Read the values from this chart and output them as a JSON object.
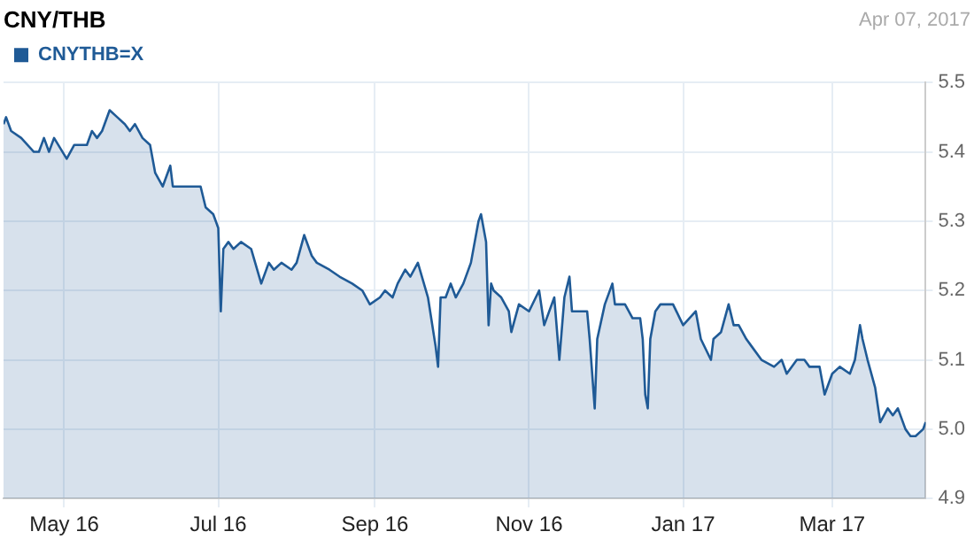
{
  "chart_data": {
    "type": "area",
    "title": "CNY/THB",
    "annotations": [
      "Apr 07, 2017"
    ],
    "legend": "top left",
    "grid": true,
    "xlim": [
      "2016-04-07",
      "2017-04-07"
    ],
    "xticks": [
      {
        "value": "2016-05-01",
        "label": "May 16"
      },
      {
        "value": "2016-07-01",
        "label": "Jul 16"
      },
      {
        "value": "2016-09-01",
        "label": "Sep 16"
      },
      {
        "value": "2016-11-01",
        "label": "Nov 16"
      },
      {
        "value": "2017-01-01",
        "label": "Jan 17"
      },
      {
        "value": "2017-03-01",
        "label": "Mar 17"
      }
    ],
    "ylim": [
      4.9,
      5.5
    ],
    "yticks": [
      {
        "value": 4.9,
        "label": "4.9"
      },
      {
        "value": 5.0,
        "label": "5.0"
      },
      {
        "value": 5.1,
        "label": "5.1"
      },
      {
        "value": 5.2,
        "label": "5.2"
      },
      {
        "value": 5.3,
        "label": "5.3"
      },
      {
        "value": 5.4,
        "label": "5.4"
      },
      {
        "value": 5.5,
        "label": "5.5"
      }
    ],
    "x": [
      "2016-04-07",
      "2016-04-08",
      "2016-04-10",
      "2016-04-14",
      "2016-04-19",
      "2016-04-21",
      "2016-04-23",
      "2016-04-25",
      "2016-04-27",
      "2016-05-02",
      "2016-05-05",
      "2016-05-10",
      "2016-05-12",
      "2016-05-14",
      "2016-05-16",
      "2016-05-19",
      "2016-05-22",
      "2016-05-25",
      "2016-05-27",
      "2016-05-29",
      "2016-06-01",
      "2016-06-04",
      "2016-06-06",
      "2016-06-09",
      "2016-06-12",
      "2016-06-13",
      "2016-06-16",
      "2016-06-21",
      "2016-06-24",
      "2016-06-26",
      "2016-06-29",
      "2016-07-01",
      "2016-07-02",
      "2016-07-03",
      "2016-07-05",
      "2016-07-07",
      "2016-07-10",
      "2016-07-14",
      "2016-07-18",
      "2016-07-21",
      "2016-07-23",
      "2016-07-26",
      "2016-07-30",
      "2016-08-01",
      "2016-08-04",
      "2016-08-07",
      "2016-08-09",
      "2016-08-14",
      "2016-08-18",
      "2016-08-23",
      "2016-08-27",
      "2016-08-30",
      "2016-09-03",
      "2016-09-05",
      "2016-09-08",
      "2016-09-10",
      "2016-09-13",
      "2016-09-15",
      "2016-09-18",
      "2016-09-22",
      "2016-09-25",
      "2016-09-26",
      "2016-09-27",
      "2016-09-29",
      "2016-10-01",
      "2016-10-03",
      "2016-10-06",
      "2016-10-09",
      "2016-10-12",
      "2016-10-13",
      "2016-10-15",
      "2016-10-16",
      "2016-10-17",
      "2016-10-18",
      "2016-10-21",
      "2016-10-24",
      "2016-10-25",
      "2016-10-28",
      "2016-11-01",
      "2016-11-05",
      "2016-11-07",
      "2016-11-11",
      "2016-11-13",
      "2016-11-15",
      "2016-11-17",
      "2016-11-18",
      "2016-11-24",
      "2016-11-25",
      "2016-11-27",
      "2016-11-28",
      "2016-12-01",
      "2016-12-04",
      "2016-12-05",
      "2016-12-09",
      "2016-12-12",
      "2016-12-15",
      "2016-12-16",
      "2016-12-17",
      "2016-12-18",
      "2016-12-19",
      "2016-12-21",
      "2016-12-23",
      "2016-12-28",
      "2017-01-01",
      "2017-01-06",
      "2017-01-08",
      "2017-01-12",
      "2017-01-13",
      "2017-01-16",
      "2017-01-19",
      "2017-01-21",
      "2017-01-23",
      "2017-01-26",
      "2017-01-28",
      "2017-02-01",
      "2017-02-06",
      "2017-02-09",
      "2017-02-11",
      "2017-02-15",
      "2017-02-18",
      "2017-02-20",
      "2017-02-24",
      "2017-02-26",
      "2017-03-01",
      "2017-03-04",
      "2017-03-08",
      "2017-03-10",
      "2017-03-12",
      "2017-03-13",
      "2017-03-15",
      "2017-03-18",
      "2017-03-20",
      "2017-03-23",
      "2017-03-25",
      "2017-03-27",
      "2017-03-30",
      "2017-04-01",
      "2017-04-03",
      "2017-04-06",
      "2017-04-07"
    ],
    "series": [
      {
        "name": "CNYTHB=X",
        "color": "#1f5a96",
        "values": [
          5.44,
          5.45,
          5.43,
          5.42,
          5.4,
          5.4,
          5.42,
          5.4,
          5.42,
          5.39,
          5.41,
          5.41,
          5.43,
          5.42,
          5.43,
          5.46,
          5.45,
          5.44,
          5.43,
          5.44,
          5.42,
          5.41,
          5.37,
          5.35,
          5.38,
          5.35,
          5.35,
          5.35,
          5.35,
          5.32,
          5.31,
          5.29,
          5.17,
          5.26,
          5.27,
          5.26,
          5.27,
          5.26,
          5.21,
          5.24,
          5.23,
          5.24,
          5.23,
          5.24,
          5.28,
          5.25,
          5.24,
          5.23,
          5.22,
          5.21,
          5.2,
          5.18,
          5.19,
          5.2,
          5.19,
          5.21,
          5.23,
          5.22,
          5.24,
          5.19,
          5.12,
          5.09,
          5.19,
          5.19,
          5.21,
          5.19,
          5.21,
          5.24,
          5.3,
          5.31,
          5.27,
          5.15,
          5.21,
          5.2,
          5.19,
          5.17,
          5.14,
          5.18,
          5.17,
          5.2,
          5.15,
          5.19,
          5.1,
          5.19,
          5.22,
          5.17,
          5.17,
          5.13,
          5.03,
          5.13,
          5.18,
          5.21,
          5.18,
          5.18,
          5.16,
          5.16,
          5.13,
          5.05,
          5.03,
          5.13,
          5.17,
          5.18,
          5.18,
          5.15,
          5.17,
          5.13,
          5.1,
          5.13,
          5.14,
          5.18,
          5.15,
          5.15,
          5.13,
          5.12,
          5.1,
          5.09,
          5.1,
          5.08,
          5.1,
          5.1,
          5.09,
          5.09,
          5.05,
          5.08,
          5.09,
          5.08,
          5.1,
          5.15,
          5.13,
          5.1,
          5.06,
          5.01,
          5.03,
          5.02,
          5.03,
          5.0,
          4.99,
          4.99,
          5.0,
          5.01
        ]
      }
    ]
  }
}
